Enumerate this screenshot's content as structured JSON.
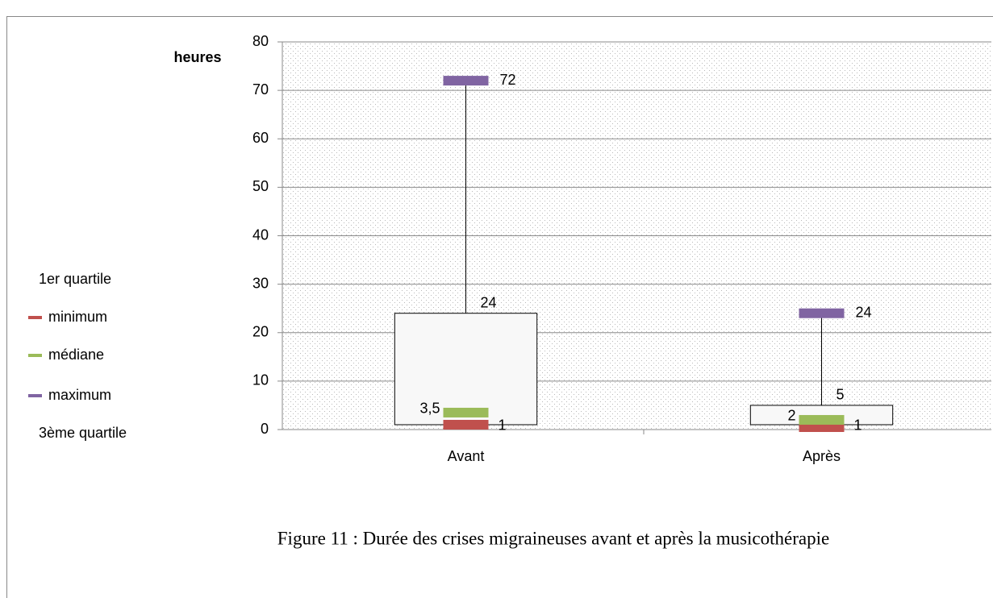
{
  "chart_data": {
    "type": "box",
    "y_label": "heures",
    "categories": [
      "Avant",
      "Après"
    ],
    "series": [
      {
        "name": "1er quartile",
        "color": null,
        "values": [
          1,
          1
        ],
        "data_labels": true
      },
      {
        "name": "minimum",
        "color": "#c0504d",
        "values": [
          1,
          0.5
        ],
        "data_labels": false
      },
      {
        "name": "médiane",
        "color": "#9bbb59",
        "values": [
          3.5,
          2
        ],
        "value_labels": [
          "3,5",
          "2"
        ],
        "data_labels": true
      },
      {
        "name": "maximum",
        "color": "#8064a2",
        "values": [
          72,
          24
        ],
        "data_labels": true
      },
      {
        "name": "3ème quartile",
        "color": null,
        "values": [
          24,
          5
        ],
        "data_labels": true
      }
    ],
    "ylim": [
      0,
      80
    ],
    "yticks": [
      0,
      10,
      20,
      30,
      40,
      50,
      60,
      70,
      80
    ],
    "grid": true,
    "legend": "left",
    "caption": "Figure 11 : Durée des crises migraineuses avant et après la musicothérapie"
  }
}
